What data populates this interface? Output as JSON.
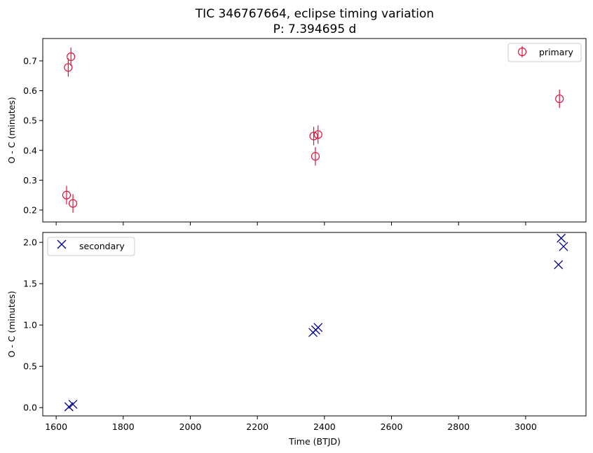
{
  "chart_data": [
    {
      "type": "scatter",
      "title": "TIC 346767664, eclipse timing variation",
      "subtitle": "P: 7.394695 d",
      "xlabel": "",
      "ylabel": "O - C (minutes)",
      "xlim": [
        1560,
        3180
      ],
      "ylim": [
        0.16,
        0.775
      ],
      "xticks": [
        1600,
        1800,
        2000,
        2200,
        2400,
        2600,
        2800,
        3000
      ],
      "yticks": [
        0.2,
        0.3,
        0.4,
        0.5,
        0.6,
        0.7
      ],
      "ytick_labels": [
        "0.2",
        "0.3",
        "0.4",
        "0.5",
        "0.6",
        "0.7"
      ],
      "legend_position": "top-right",
      "series": [
        {
          "name": "primary",
          "marker": "open-circle",
          "color": "#dc143c",
          "x": [
            1631,
            1636,
            1644,
            1650,
            2368,
            2373,
            2381,
            3101
          ],
          "y": [
            0.25,
            0.678,
            0.714,
            0.222,
            0.448,
            0.38,
            0.453,
            0.573
          ],
          "yerr": [
            0.031,
            0.031,
            0.031,
            0.031,
            0.031,
            0.031,
            0.031,
            0.031
          ]
        }
      ]
    },
    {
      "type": "scatter",
      "xlabel": "Time (BTJD)",
      "ylabel": "O - C (minutes)",
      "xlim": [
        1560,
        3180
      ],
      "ylim": [
        -0.1,
        2.12
      ],
      "xticks": [
        1600,
        1800,
        2000,
        2200,
        2400,
        2600,
        2800,
        3000
      ],
      "xtick_labels": [
        "1600",
        "1800",
        "2000",
        "2200",
        "2400",
        "2600",
        "2800",
        "3000"
      ],
      "yticks": [
        0.0,
        0.5,
        1.0,
        1.5,
        2.0
      ],
      "ytick_labels": [
        "0.0",
        "0.5",
        "1.0",
        "1.5",
        "2.0"
      ],
      "legend_position": "top-left",
      "series": [
        {
          "name": "secondary",
          "marker": "x",
          "color": "#00008b",
          "x": [
            1638,
            1650,
            2366,
            2374,
            2381,
            3098,
            3106,
            3113
          ],
          "y": [
            0.01,
            0.04,
            0.91,
            0.94,
            0.97,
            1.73,
            2.05,
            1.95
          ]
        }
      ]
    }
  ]
}
